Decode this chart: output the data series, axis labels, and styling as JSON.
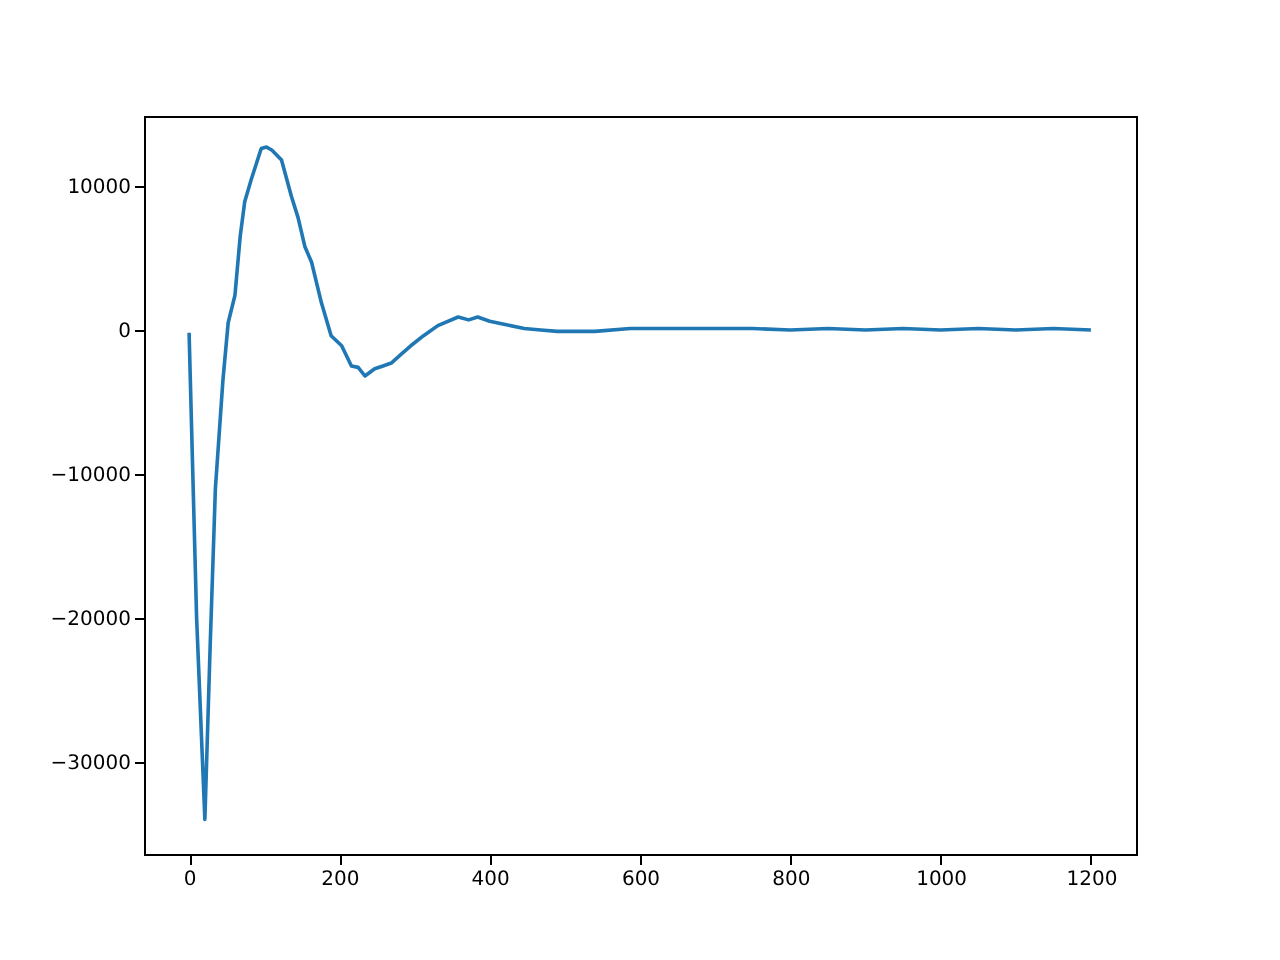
{
  "chart_data": {
    "type": "line",
    "x": [
      0,
      10,
      21,
      28,
      35,
      45,
      52,
      61,
      68,
      74,
      83,
      96,
      103,
      110,
      123,
      136,
      145,
      154,
      163,
      176,
      189,
      203,
      216,
      225,
      234,
      247,
      258,
      269,
      282,
      295,
      312,
      331,
      358,
      372,
      384,
      400,
      419,
      446,
      468,
      490,
      508,
      540,
      587,
      620,
      660,
      700,
      750,
      800,
      850,
      900,
      950,
      1000,
      1050,
      1100,
      1150,
      1200
    ],
    "series": [
      {
        "color": "#1f77b4",
        "values": [
          -200,
          -20000,
          -34000,
          -22000,
          -11000,
          -3500,
          500,
          2400,
          6500,
          8900,
          10500,
          12600,
          12700,
          12500,
          11800,
          9300,
          7800,
          5800,
          4700,
          1900,
          -400,
          -1100,
          -2500,
          -2600,
          -3200,
          -2700,
          -2500,
          -2300,
          -1700,
          -1100,
          -400,
          300,
          900,
          700,
          900,
          600,
          400,
          100,
          0,
          -100,
          -100,
          -100,
          100,
          100,
          100,
          100,
          100,
          0,
          100,
          0,
          100,
          0,
          100,
          0,
          100,
          0
        ]
      }
    ],
    "xlim": [
      -60,
      1260
    ],
    "ylim": [
      -36400,
      14860
    ],
    "xticks": [
      0,
      200,
      400,
      600,
      800,
      1000,
      1200
    ],
    "yticks": [
      -30000,
      -20000,
      -10000,
      0,
      10000
    ],
    "grid": false,
    "line_style": "solid",
    "marker": "none"
  }
}
